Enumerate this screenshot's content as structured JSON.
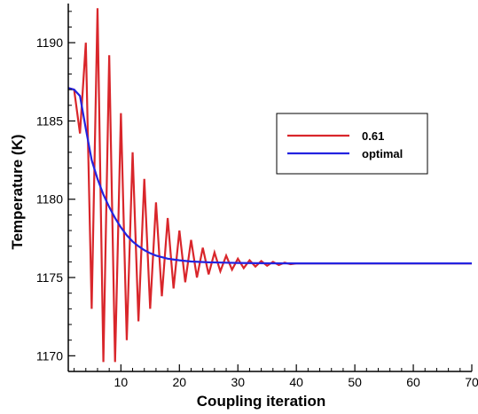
{
  "chart_data": {
    "type": "line",
    "title": "",
    "xlabel": "Coupling iteration",
    "ylabel": "Temperature (K)",
    "xlim": [
      1,
      70
    ],
    "ylim": [
      1169,
      1192.5
    ],
    "xticks": [
      10,
      20,
      30,
      40,
      50,
      60,
      70
    ],
    "yticks": [
      1170,
      1175,
      1180,
      1185,
      1190
    ],
    "grid": false,
    "legend_position": "right",
    "series": [
      {
        "name": "0.61",
        "color": "#d9262b",
        "x": [
          1,
          2,
          3,
          4,
          5,
          6,
          7,
          8,
          9,
          10,
          11,
          12,
          13,
          14,
          15,
          16,
          17,
          18,
          19,
          20,
          21,
          22,
          23,
          24,
          25,
          26,
          27,
          28,
          29,
          30,
          31,
          32,
          33,
          34,
          35,
          36,
          37,
          38,
          39,
          40,
          42,
          44,
          46,
          48,
          50,
          55,
          60,
          65,
          70
        ],
        "y": [
          1187.1,
          1187.0,
          1184.2,
          1190.0,
          1173.0,
          1192.2,
          1169.6,
          1189.2,
          1169.6,
          1185.5,
          1171.0,
          1183.0,
          1172.2,
          1181.3,
          1173.0,
          1179.8,
          1173.8,
          1178.8,
          1174.3,
          1178.0,
          1174.7,
          1177.4,
          1175.0,
          1176.9,
          1175.2,
          1176.6,
          1175.4,
          1176.4,
          1175.5,
          1176.2,
          1175.6,
          1176.1,
          1175.7,
          1176.05,
          1175.75,
          1176.0,
          1175.8,
          1175.95,
          1175.85,
          1175.9,
          1175.9,
          1175.9,
          1175.9,
          1175.9,
          1175.9,
          1175.9,
          1175.9,
          1175.9,
          1175.9
        ]
      },
      {
        "name": "optimal",
        "color": "#2323e0",
        "x": [
          1,
          2,
          3,
          4,
          5,
          6,
          7,
          8,
          9,
          10,
          11,
          12,
          13,
          14,
          15,
          16,
          17,
          18,
          19,
          20,
          22,
          25,
          30,
          35,
          40,
          50,
          60,
          70
        ],
        "y": [
          1187.1,
          1187.0,
          1186.6,
          1184.5,
          1182.5,
          1181.3,
          1180.3,
          1179.5,
          1178.8,
          1178.2,
          1177.7,
          1177.3,
          1177.0,
          1176.75,
          1176.55,
          1176.4,
          1176.3,
          1176.2,
          1176.15,
          1176.1,
          1176.02,
          1175.97,
          1175.93,
          1175.91,
          1175.9,
          1175.9,
          1175.9,
          1175.9
        ]
      }
    ]
  }
}
